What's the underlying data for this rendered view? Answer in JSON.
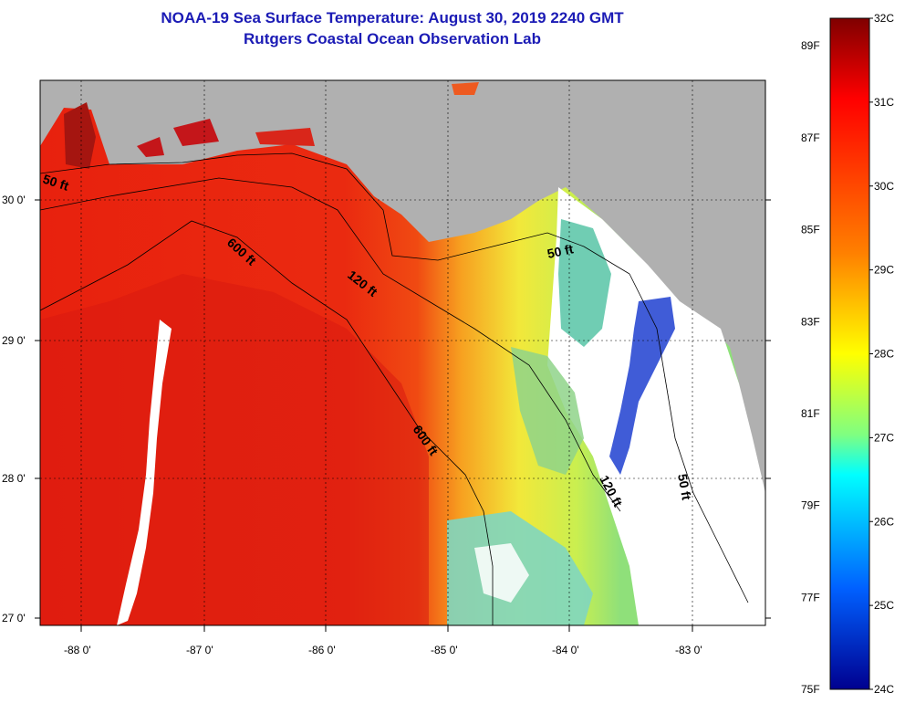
{
  "header": {
    "title_line1": "NOAA-19 Sea Surface Temperature:  August 30, 2019 2240 GMT",
    "title_line2": "Rutgers Coastal Ocean Observation Lab"
  },
  "map": {
    "x_ticks": [
      "-88 0'",
      "-87 0'",
      "-86 0'",
      "-85 0'",
      "-84 0'",
      "-83 0'"
    ],
    "y_ticks": [
      "30 0'",
      "29 0'",
      "28 0'",
      "27 0'"
    ],
    "depth_contours": [
      "50 ft",
      "600 ft",
      "120 ft",
      "50 ft",
      "600 ft",
      "120 ft",
      "50 ft"
    ],
    "colors": {
      "land": "#b0b0b0",
      "cloud": "#ffffff",
      "frame": "#000000"
    }
  },
  "colorbar": {
    "celsius_labels": [
      "32C",
      "31C",
      "30C",
      "29C",
      "28C",
      "27C",
      "26C",
      "25C",
      "24C"
    ],
    "fahrenheit_labels": [
      "89F",
      "87F",
      "85F",
      "83F",
      "81F",
      "79F",
      "77F",
      "75F"
    ],
    "range_c": [
      24,
      32
    ],
    "range_f": [
      75,
      89.6
    ],
    "scale": "jet"
  }
}
